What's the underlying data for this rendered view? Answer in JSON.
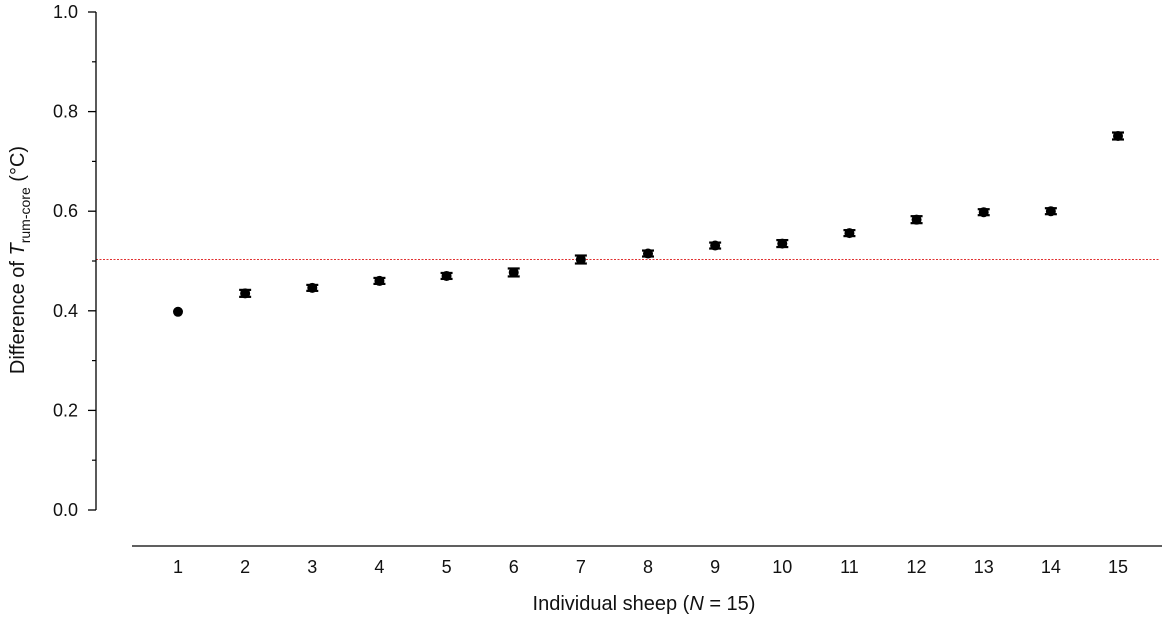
{
  "chart_data": {
    "type": "scatter",
    "x": [
      1,
      2,
      3,
      4,
      5,
      6,
      7,
      8,
      9,
      10,
      11,
      12,
      13,
      14,
      15
    ],
    "y": [
      0.398,
      0.435,
      0.446,
      0.46,
      0.47,
      0.477,
      0.503,
      0.515,
      0.531,
      0.535,
      0.556,
      0.583,
      0.598,
      0.6,
      0.751
    ],
    "error": [
      0.0,
      0.007,
      0.006,
      0.006,
      0.006,
      0.008,
      0.008,
      0.006,
      0.006,
      0.007,
      0.006,
      0.007,
      0.006,
      0.006,
      0.007
    ],
    "x_tick_labels": [
      "1",
      "2",
      "3",
      "4",
      "5",
      "6",
      "7",
      "8",
      "9",
      "10",
      "11",
      "12",
      "13",
      "14",
      "15"
    ],
    "y_tick_labels": [
      "0.0",
      "0.2",
      "0.4",
      "0.6",
      "0.8",
      "1.0"
    ],
    "ylim": [
      0,
      1.0
    ],
    "xlim": [
      0.3,
      15.7
    ],
    "reference_line": {
      "y": 0.503,
      "color": "#e03030",
      "style": "dotted"
    },
    "xlabel": {
      "prefix": "Individual sheep (",
      "italic": "N",
      "suffix": " = 15)"
    },
    "ylabel": {
      "prefix": "Difference of ",
      "italic": "T",
      "subscript": "rum-core",
      "suffix": " (°C)"
    },
    "marker_color": "#000000",
    "grid": false,
    "legend": "none"
  }
}
